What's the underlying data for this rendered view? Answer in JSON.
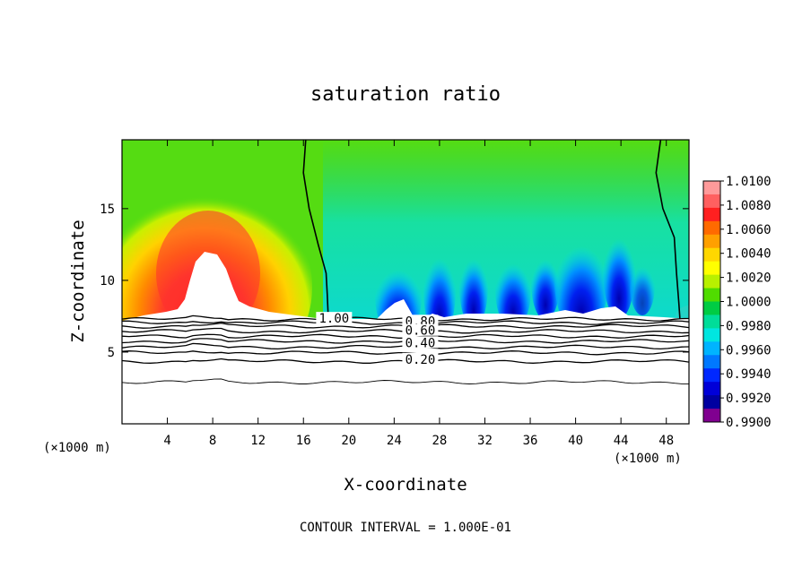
{
  "chart_data": {
    "type": "heatmap",
    "title": "saturation ratio",
    "xlabel": "X-coordinate",
    "ylabel": "Z-coordinate",
    "x_unit": "(×1000 m)",
    "x_unit_right": "(×1000 m)",
    "footer": "CONTOUR INTERVAL = 1.000E-01",
    "xlim": [
      0,
      50
    ],
    "ylim": [
      0,
      19.8
    ],
    "x_ticks": [
      4,
      8,
      12,
      16,
      20,
      24,
      28,
      32,
      36,
      40,
      44,
      48
    ],
    "y_ticks": [
      5,
      10,
      15
    ],
    "colorbar": {
      "labels": [
        "1.0100",
        "1.0080",
        "1.0060",
        "1.0040",
        "1.0020",
        "1.0000",
        "0.9980",
        "0.9960",
        "0.9940",
        "0.9920",
        "0.9900"
      ],
      "colors": [
        "#ff9a9a",
        "#ff6060",
        "#ff2020",
        "#ff6a00",
        "#ffa000",
        "#ffd700",
        "#ffff00",
        "#b8f000",
        "#50dc00",
        "#00cc44",
        "#00dd99",
        "#00e6e0",
        "#00b4ff",
        "#0078ff",
        "#0028ff",
        "#0000d8",
        "#0000a0",
        "#800090"
      ]
    },
    "contour_labels": [
      {
        "text": "1.00",
        "x": 18.7,
        "z": 7.3
      },
      {
        "text": "0.80",
        "x": 26.3,
        "z": 7.1
      },
      {
        "text": "0.60",
        "x": 26.3,
        "z": 6.45
      },
      {
        "text": "0.40",
        "x": 26.3,
        "z": 5.6
      },
      {
        "text": "0.20",
        "x": 26.3,
        "z": 4.45
      }
    ],
    "contour_levels": [
      {
        "value": 1.0,
        "z": 7.3
      },
      {
        "value": 0.9,
        "z": 7.05
      },
      {
        "value": 0.8,
        "z": 6.8
      },
      {
        "value": 0.7,
        "z": 6.45
      },
      {
        "value": 0.6,
        "z": 6.1
      },
      {
        "value": 0.5,
        "z": 5.75
      },
      {
        "value": 0.4,
        "z": 5.35
      },
      {
        "value": 0.3,
        "z": 4.95
      },
      {
        "value": 0.2,
        "z": 4.35
      },
      {
        "value": 0.1,
        "z": 2.9
      }
    ],
    "unity_contours": [
      [
        [
          16.2,
          19.8
        ],
        [
          16.0,
          17.5
        ],
        [
          16.5,
          15.0
        ],
        [
          17.3,
          12.5
        ],
        [
          18.0,
          10.5
        ],
        [
          18.1,
          9.0
        ],
        [
          18.2,
          7.3
        ]
      ],
      [
        [
          47.5,
          19.8
        ],
        [
          47.1,
          17.5
        ],
        [
          47.7,
          15.0
        ],
        [
          48.7,
          13.0
        ],
        [
          48.9,
          10.5
        ],
        [
          49.1,
          8.5
        ],
        [
          49.2,
          7.3
        ]
      ]
    ],
    "grid": false,
    "legend": "right"
  }
}
